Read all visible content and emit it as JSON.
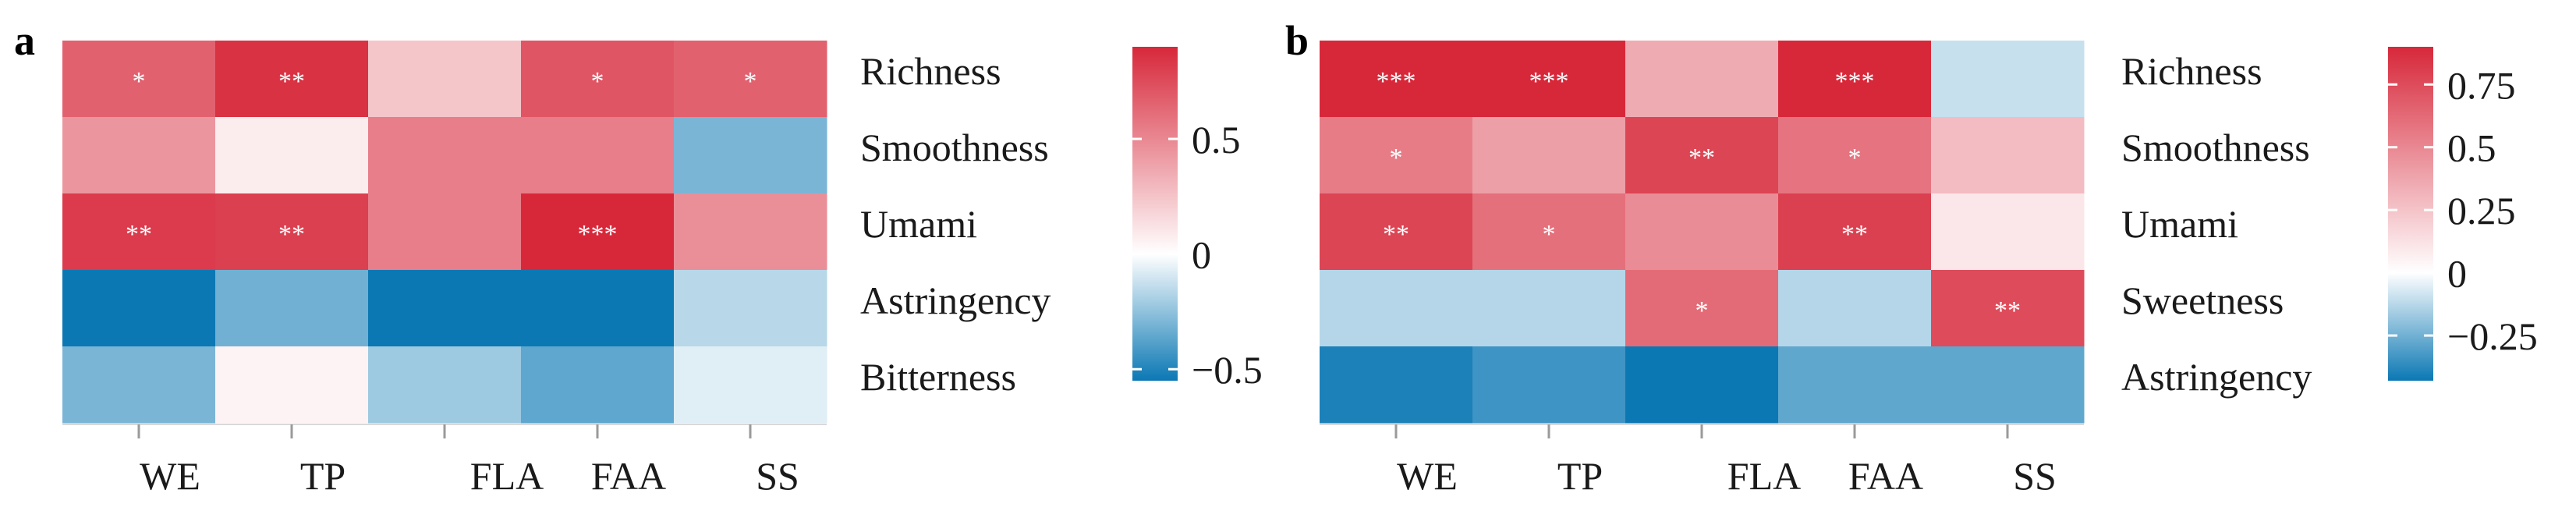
{
  "chart_data": [
    {
      "type": "heatmap",
      "panel_label": "a",
      "x_categories": [
        "WE",
        "TP",
        "FLA",
        "FAA",
        "SS"
      ],
      "y_categories": [
        "Richness",
        "Smoothness",
        "Umami",
        "Astringency",
        "Bitterness"
      ],
      "values": [
        [
          0.66,
          0.86,
          0.24,
          0.71,
          0.66
        ],
        [
          0.44,
          0.08,
          0.54,
          0.54,
          -0.3
        ],
        [
          0.82,
          0.8,
          0.54,
          0.9,
          0.47
        ],
        [
          -0.55,
          -0.32,
          -0.55,
          -0.55,
          -0.16
        ],
        [
          -0.3,
          0.05,
          -0.22,
          -0.36,
          -0.07
        ]
      ],
      "annotations": [
        [
          "*",
          "**",
          "",
          "*",
          "*"
        ],
        [
          "",
          "",
          "",
          "",
          ""
        ],
        [
          "**",
          "**",
          "",
          "***",
          ""
        ],
        [
          "",
          "",
          "",
          "",
          ""
        ],
        [
          "",
          "",
          "",
          "",
          ""
        ]
      ],
      "colorbar": {
        "min": -0.55,
        "max": 0.9,
        "ticks": [
          -0.5,
          0,
          0.5
        ],
        "tick_labels": [
          "−0.5",
          "0",
          "0.5"
        ]
      },
      "colors": {
        "low": "#0b78b4",
        "mid": "#ffffff",
        "high": "#d7283a"
      }
    },
    {
      "type": "heatmap",
      "panel_label": "b",
      "x_categories": [
        "WE",
        "TP",
        "FLA",
        "FAA",
        "SS"
      ],
      "y_categories": [
        "Richness",
        "Smoothness",
        "Umami",
        "Sweetness",
        "Astringency"
      ],
      "values": [
        [
          0.9,
          0.9,
          0.35,
          0.9,
          -0.1
        ],
        [
          0.55,
          0.4,
          0.78,
          0.58,
          0.28
        ],
        [
          0.78,
          0.6,
          0.48,
          0.8,
          0.1
        ],
        [
          -0.13,
          -0.13,
          0.62,
          -0.13,
          0.75
        ],
        [
          -0.4,
          -0.34,
          -0.43,
          -0.28,
          -0.28
        ]
      ],
      "annotations": [
        [
          "***",
          "***",
          "",
          "***",
          ""
        ],
        [
          "*",
          "",
          "**",
          "*",
          ""
        ],
        [
          "**",
          "*",
          "",
          "**",
          ""
        ],
        [
          "",
          "",
          "*",
          "",
          "**"
        ],
        [
          "",
          "",
          "",
          "",
          ""
        ]
      ],
      "colorbar": {
        "min": -0.43,
        "max": 0.9,
        "ticks": [
          -0.25,
          0,
          0.25,
          0.5,
          0.75
        ],
        "tick_labels": [
          "−0.25",
          "0",
          "0.25",
          "0.5",
          "0.75"
        ]
      },
      "colors": {
        "low": "#0b78b4",
        "mid": "#ffffff",
        "high": "#d7283a"
      }
    }
  ]
}
